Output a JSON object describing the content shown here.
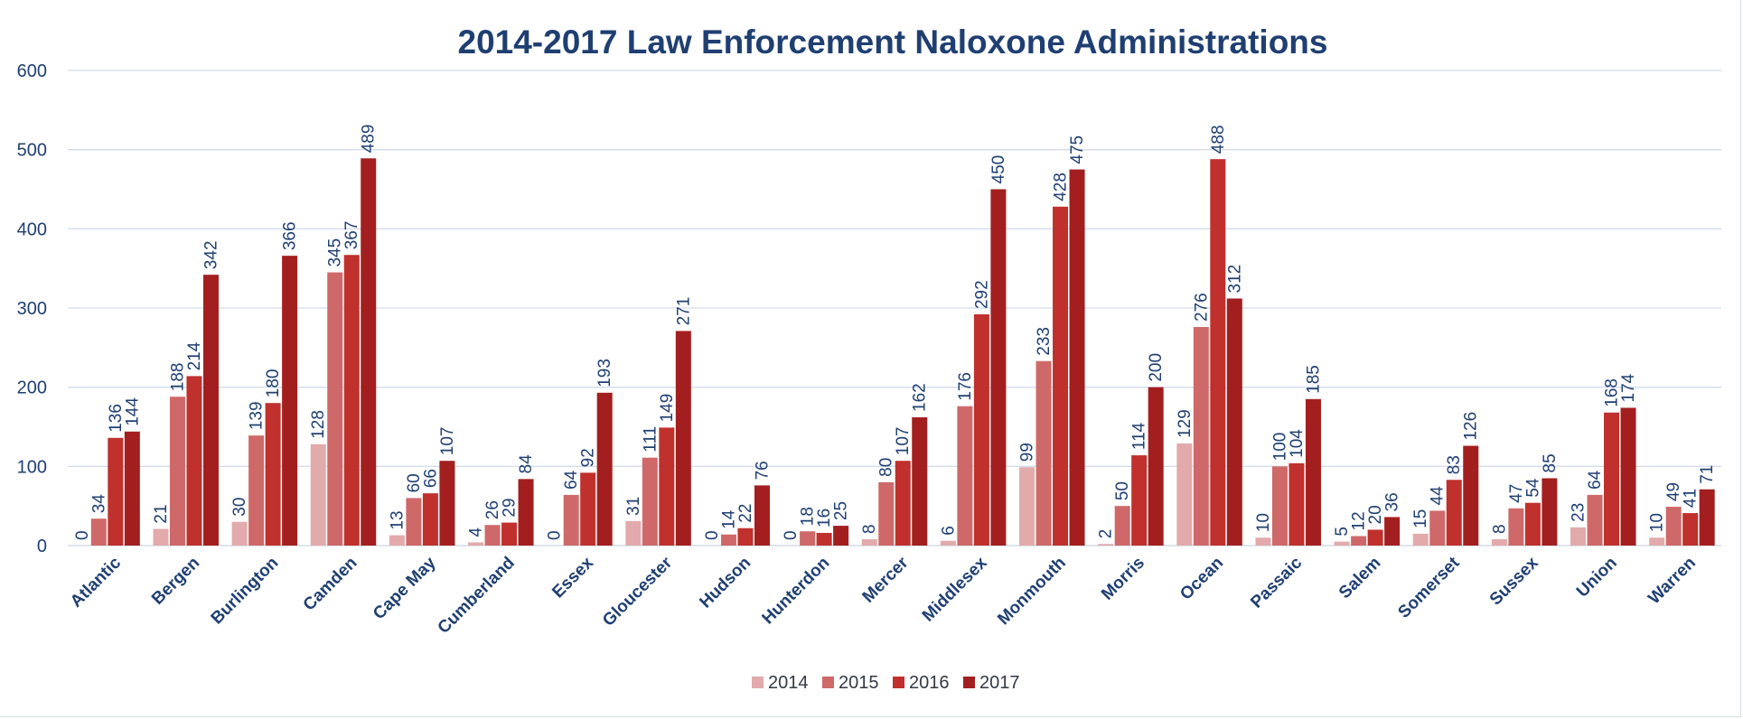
{
  "chart_data": {
    "type": "bar",
    "title": "2014-2017 Law Enforcement Naloxone Administrations",
    "xlabel": "",
    "ylabel": "",
    "ylim": [
      0,
      600
    ],
    "yticks": [
      "0",
      "100",
      "200",
      "300",
      "400",
      "500",
      "600"
    ],
    "grid": true,
    "legend_position": "bottom",
    "categories": [
      "Atlantic",
      "Bergen",
      "Burlington",
      "Camden",
      "Cape May",
      "Cumberland",
      "Essex",
      "Gloucester",
      "Hudson",
      "Hunterdon",
      "Mercer",
      "Middlesex",
      "Monmouth",
      "Morris",
      "Ocean",
      "Passaic",
      "Salem",
      "Somerset",
      "Sussex",
      "Union",
      "Warren"
    ],
    "series": [
      {
        "name": "2014",
        "color": "#e2aaaa",
        "values": [
          0,
          21,
          30,
          128,
          13,
          4,
          0,
          31,
          0,
          0,
          8,
          6,
          99,
          2,
          129,
          10,
          5,
          15,
          8,
          23,
          10
        ]
      },
      {
        "name": "2015",
        "color": "#cf6969",
        "values": [
          34,
          188,
          139,
          345,
          60,
          26,
          64,
          111,
          14,
          18,
          80,
          176,
          233,
          50,
          276,
          100,
          12,
          44,
          47,
          64,
          49
        ]
      },
      {
        "name": "2016",
        "color": "#c0302c",
        "values": [
          136,
          214,
          180,
          367,
          66,
          29,
          92,
          149,
          22,
          16,
          107,
          292,
          428,
          114,
          488,
          104,
          20,
          83,
          54,
          168,
          41
        ]
      },
      {
        "name": "2017",
        "color": "#a31f1f",
        "values": [
          144,
          342,
          366,
          489,
          107,
          84,
          193,
          271,
          76,
          25,
          162,
          450,
          475,
          200,
          312,
          185,
          36,
          126,
          85,
          174,
          71
        ]
      }
    ]
  }
}
